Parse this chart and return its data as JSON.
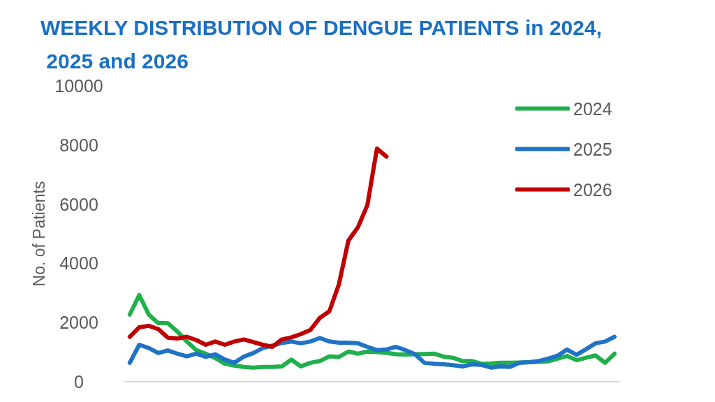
{
  "chart_data": {
    "type": "line",
    "title": "WEEKLY DISTRIBUTION OF DENGUE PATIENTS in 2024, 2025 and 2026",
    "ylabel": "No. of Patients",
    "categories": [
      null,
      null,
      null,
      null,
      null,
      null,
      null,
      null,
      null,
      null,
      null,
      null,
      null,
      null,
      null,
      null,
      null,
      null,
      null,
      null,
      null,
      null,
      null,
      null,
      null,
      null,
      null,
      null,
      null,
      null,
      null,
      null,
      null,
      null,
      null,
      null,
      null,
      null,
      null,
      null,
      null,
      null,
      null,
      null,
      null,
      null,
      null,
      null,
      null,
      null,
      null,
      null
    ],
    "series": [
      {
        "name": "2024",
        "color": "#1fb04b",
        "values": [
          2270,
          2930,
          2270,
          1980,
          1980,
          1700,
          1360,
          1070,
          950,
          800,
          610,
          550,
          500,
          480,
          500,
          500,
          520,
          750,
          520,
          640,
          700,
          860,
          840,
          1020,
          950,
          1020,
          1000,
          980,
          930,
          920,
          930,
          940,
          950,
          850,
          810,
          700,
          700,
          610,
          620,
          640,
          640,
          650,
          660,
          670,
          690,
          780,
          870,
          730,
          810,
          890,
          640,
          950
        ]
      },
      {
        "name": "2025",
        "color": "#1f73c6",
        "values": [
          640,
          1250,
          1140,
          970,
          1060,
          950,
          860,
          950,
          840,
          930,
          750,
          640,
          850,
          970,
          1140,
          1220,
          1310,
          1360,
          1300,
          1360,
          1480,
          1360,
          1320,
          1320,
          1300,
          1180,
          1070,
          1090,
          1180,
          1070,
          930,
          640,
          610,
          590,
          560,
          520,
          590,
          570,
          480,
          520,
          500,
          640,
          660,
          700,
          780,
          880,
          1090,
          910,
          1100,
          1300,
          1360,
          1520
        ]
      },
      {
        "name": "2026",
        "color": "#c00000",
        "values": [
          1520,
          1840,
          1890,
          1780,
          1490,
          1460,
          1520,
          1410,
          1250,
          1360,
          1250,
          1360,
          1430,
          1340,
          1250,
          1180,
          1430,
          1500,
          1610,
          1750,
          2160,
          2380,
          3290,
          4770,
          5220,
          5970,
          7880,
          7610,
          null,
          null,
          null,
          null,
          null,
          null,
          null,
          null,
          null,
          null,
          null,
          null,
          null,
          null,
          null,
          null,
          null,
          null,
          null,
          null,
          null,
          null,
          null,
          null
        ]
      }
    ],
    "ylim": [
      0,
      10000
    ],
    "yticks": [
      0,
      2000,
      4000,
      6000,
      8000,
      10000
    ],
    "tick_labels": "y",
    "grid": false,
    "legend": "top right",
    "marker": "none",
    "line_style": "solid"
  }
}
